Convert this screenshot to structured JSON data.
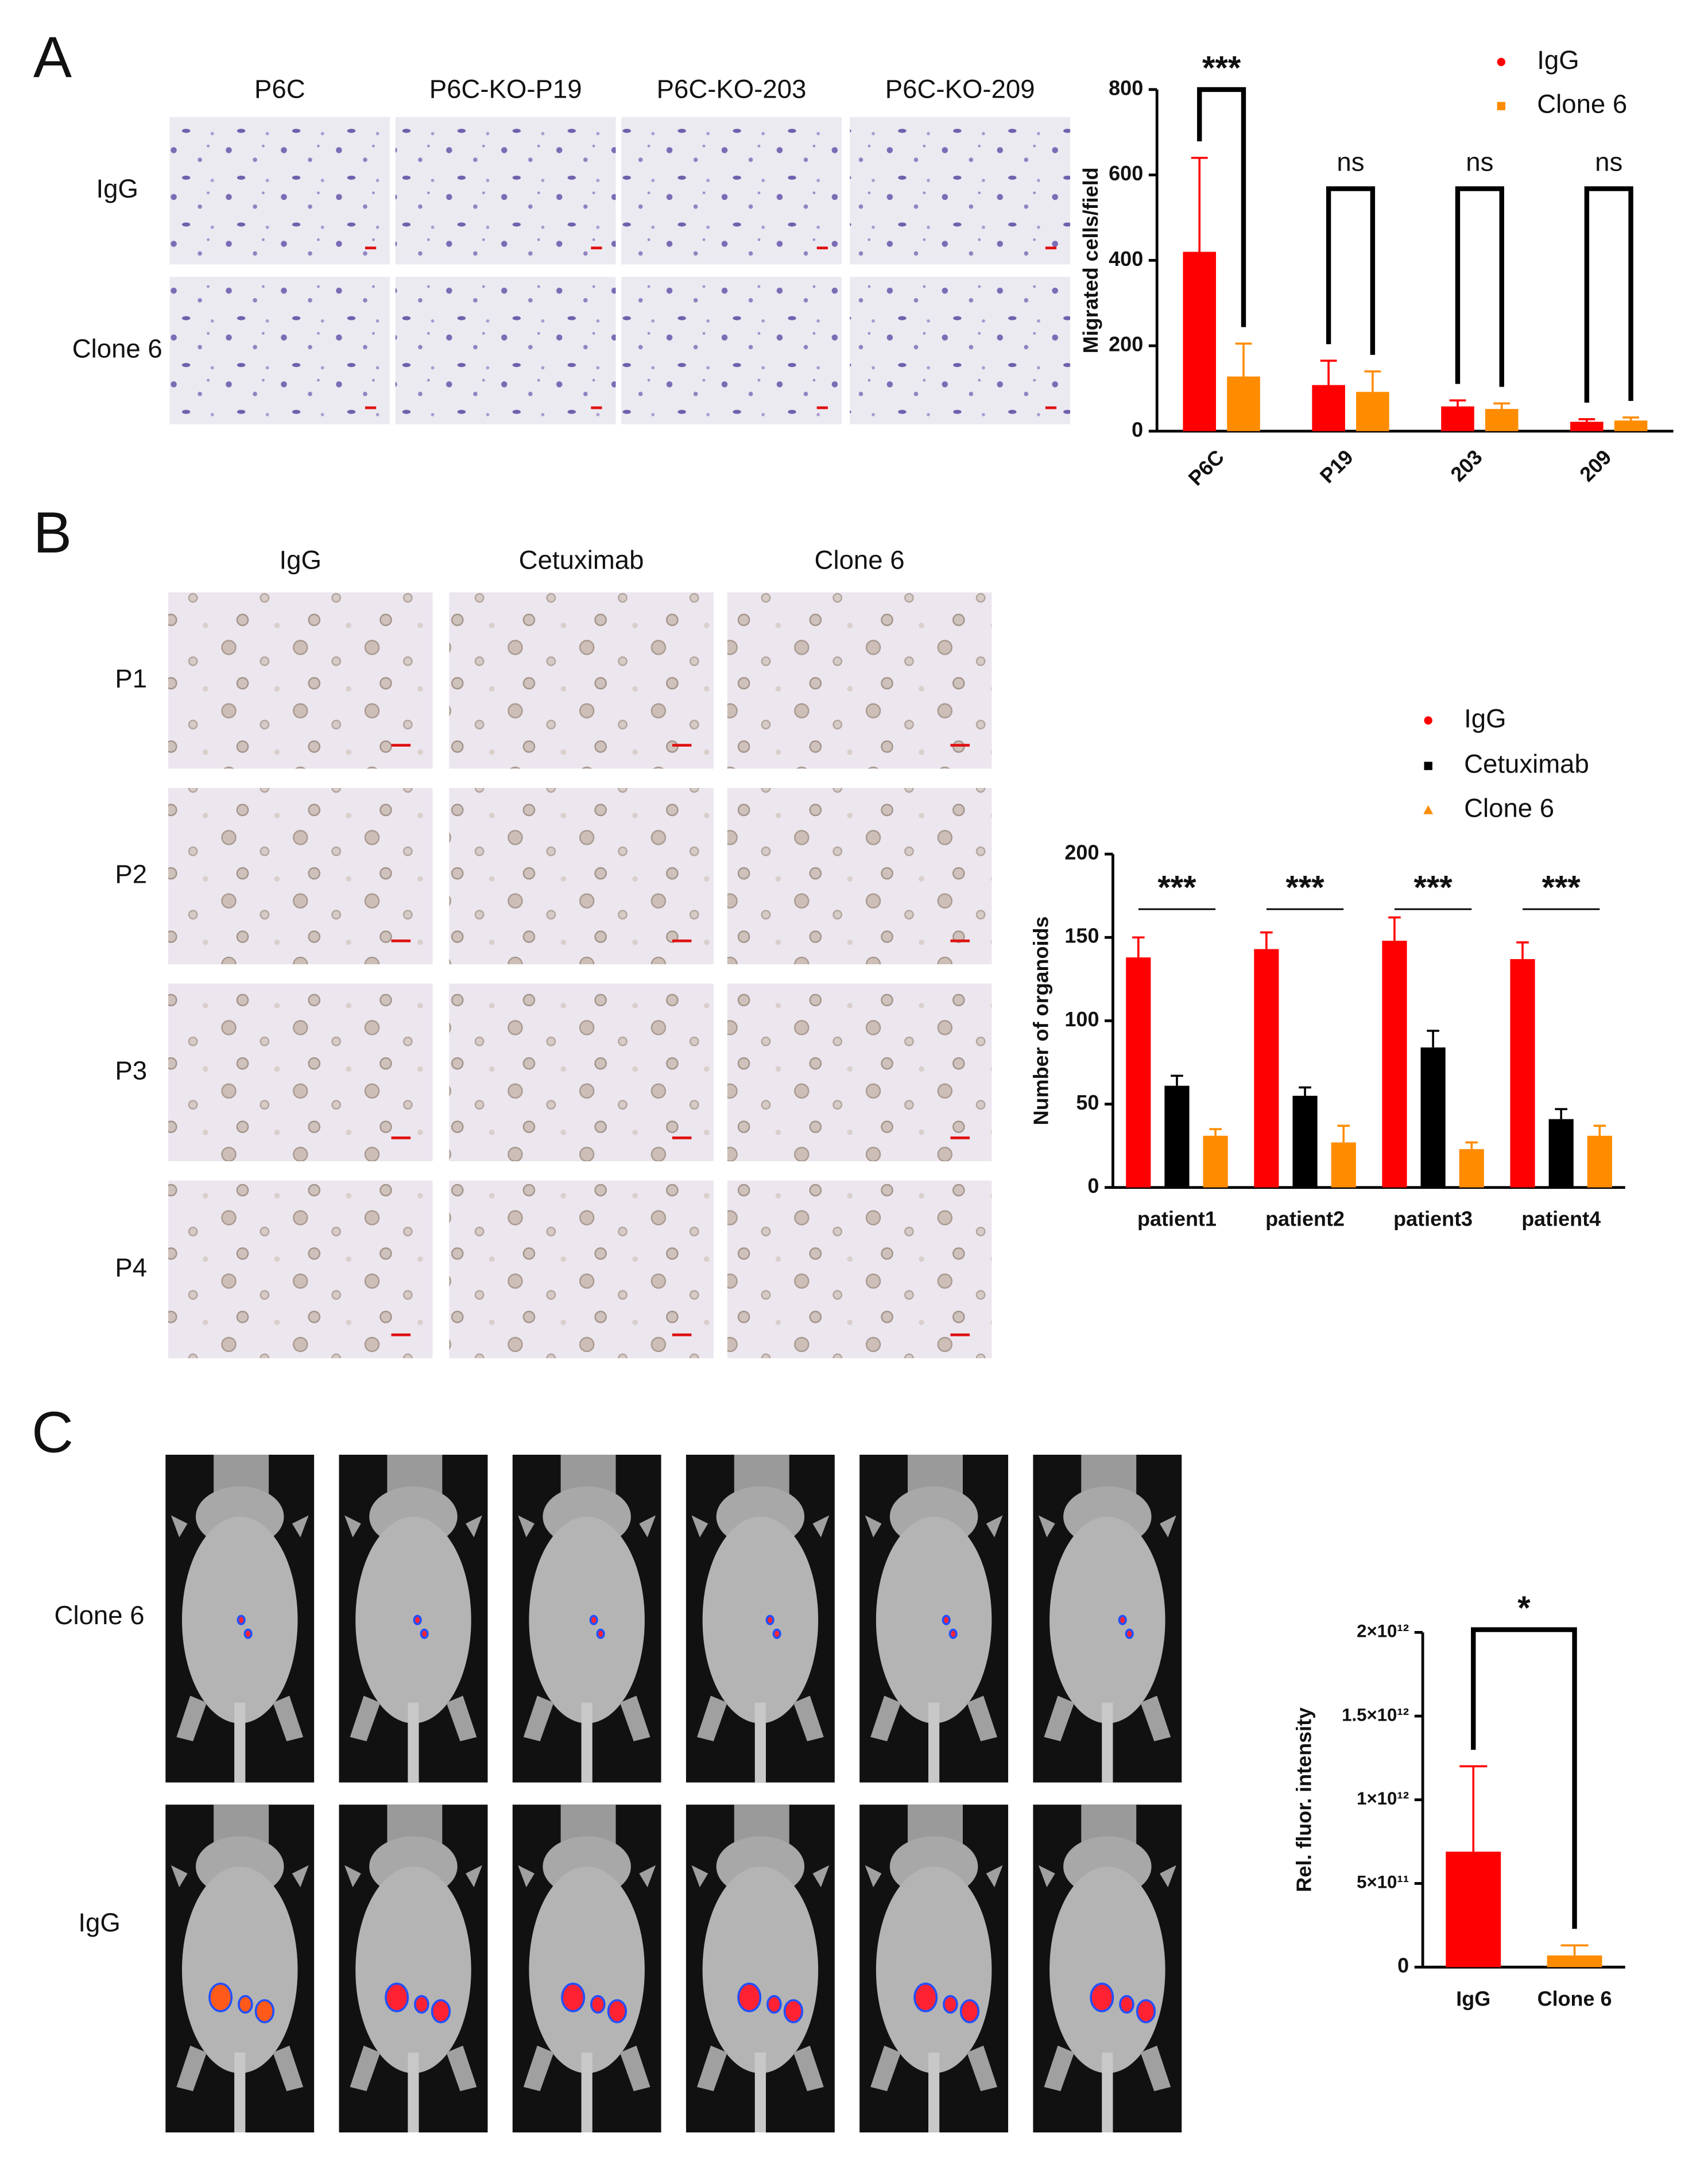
{
  "panels": [
    {
      "label": "A",
      "columns": [
        "P6C",
        "P6C-KO-P19",
        "P6C-KO-203",
        "P6C-KO-209"
      ],
      "rows": [
        "IgG",
        "Clone 6"
      ]
    },
    {
      "label": "B",
      "columns": [
        "IgG",
        "Cetuximab",
        "Clone 6"
      ],
      "rows": [
        "P1",
        "P2",
        "P3",
        "P4"
      ]
    },
    {
      "label": "C",
      "rows": [
        "Clone 6",
        "IgG"
      ]
    }
  ],
  "chart_data": [
    {
      "type": "bar",
      "y_label": "Migrated cells/field",
      "categories": [
        "P6C",
        "P19",
        "203",
        "209"
      ],
      "series": [
        {
          "name": "IgG",
          "color": "#ff0000",
          "marker": "circle",
          "values": [
            420,
            108,
            58,
            22
          ],
          "errors": [
            220,
            57,
            14,
            6
          ]
        },
        {
          "name": "Clone 6",
          "color": "#ff8c00",
          "marker": "square",
          "values": [
            128,
            92,
            52,
            25
          ],
          "errors": [
            77,
            48,
            13,
            7
          ]
        }
      ],
      "annotations": [
        "***",
        "ns",
        "ns",
        "ns"
      ],
      "ylim": [
        0,
        800
      ],
      "yticks": [
        0,
        200,
        400,
        600,
        800
      ]
    },
    {
      "type": "bar",
      "y_label": "Number of organoids",
      "categories": [
        "patient1",
        "patient2",
        "patient3",
        "patient4"
      ],
      "series": [
        {
          "name": "IgG",
          "color": "#ff0000",
          "marker": "circle",
          "values": [
            138,
            143,
            148,
            137
          ],
          "errors": [
            12,
            10,
            14,
            10
          ]
        },
        {
          "name": "Cetuximab",
          "color": "#000000",
          "marker": "square",
          "values": [
            61,
            55,
            84,
            41
          ],
          "errors": [
            6,
            5,
            10,
            6
          ]
        },
        {
          "name": "Clone 6",
          "color": "#ff8c00",
          "marker": "triangle",
          "values": [
            31,
            27,
            23,
            31
          ],
          "errors": [
            4,
            10,
            4,
            6
          ]
        }
      ],
      "annotations": [
        "***",
        "***",
        "***",
        "***"
      ],
      "ylim": [
        0,
        200
      ],
      "yticks": [
        0,
        50,
        100,
        150,
        200
      ]
    },
    {
      "type": "bar",
      "y_label": "Rel. fluor. intensity",
      "categories": [
        "IgG",
        "Clone 6"
      ],
      "values": [
        690000000000,
        70000000000
      ],
      "errors": [
        510000000000,
        60000000000
      ],
      "colors": [
        "#ff0000",
        "#ff8c00"
      ],
      "annotations": [
        "*"
      ],
      "ylim": [
        0,
        2000000000000
      ],
      "yticks": [
        0,
        {
          "value": 500000000000,
          "label": "5×10¹¹"
        },
        {
          "value": 1000000000000,
          "label": "1×10¹²"
        },
        {
          "value": 1500000000000,
          "label": "1.5×10¹²"
        },
        {
          "value": 2000000000000,
          "label": "2×10¹²"
        }
      ]
    }
  ]
}
